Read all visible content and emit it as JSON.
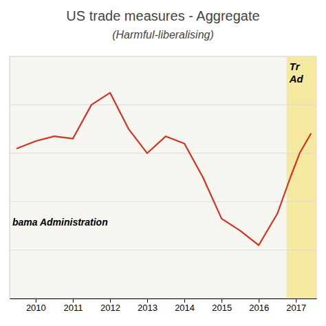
{
  "chart_data": {
    "type": "line",
    "title": "US trade measures - Aggregate",
    "subtitle": "(Harmful-liberalising)",
    "x": [
      2009.5,
      2010.0,
      2010.5,
      2011.0,
      2011.5,
      2012.0,
      2012.5,
      2013.0,
      2013.5,
      2014.0,
      2014.5,
      2015.0,
      2015.5,
      2016.0,
      2016.5,
      2016.85,
      2017.1,
      2017.4
    ],
    "values": [
      62,
      65,
      67,
      66,
      80,
      85,
      70,
      60,
      67,
      64,
      50,
      33,
      28,
      22,
      35,
      50,
      60,
      68
    ],
    "color": "#cc3322",
    "xlim": [
      2009.3,
      2017.55
    ],
    "ylim": [
      0,
      100
    ],
    "xticks": [
      2010,
      2011,
      2012,
      2013,
      2014,
      2015,
      2016,
      2017
    ],
    "yticks": [
      20,
      40,
      60,
      80
    ],
    "grid": true,
    "tick_labels": "x",
    "regions": [
      {
        "start": 2009.3,
        "end": 2016.75,
        "label": "bama Administration"
      },
      {
        "start": 2016.75,
        "end": 2017.55,
        "color": "#f5e8a0",
        "label": [
          "Tr",
          "Ad"
        ]
      }
    ]
  }
}
